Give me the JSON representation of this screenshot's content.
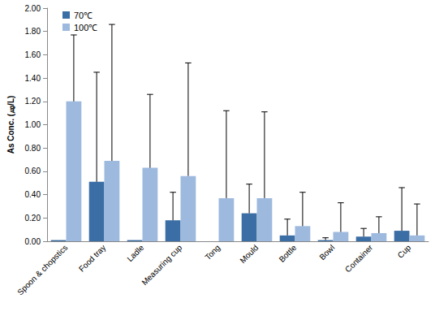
{
  "chart_data": {
    "type": "bar",
    "y_label": "As Conc. (㎍/L)",
    "categories": [
      "Spoon & chopstics",
      "Food tray",
      "Ladle",
      "Measuring cup",
      "Tong",
      "Mould",
      "Bottle",
      "Bowl",
      "Container",
      "Cup"
    ],
    "series": [
      {
        "name": "70℃",
        "color": "#3B6EA5",
        "values": [
          0.01,
          0.51,
          0.01,
          0.18,
          0.0,
          0.24,
          0.05,
          0.01,
          0.04,
          0.09
        ],
        "errors": [
          null,
          0.94,
          null,
          0.24,
          null,
          0.25,
          0.14,
          0.02,
          0.07,
          0.37
        ]
      },
      {
        "name": "100℃",
        "color": "#9DB9DE",
        "values": [
          1.2,
          0.69,
          0.63,
          0.56,
          0.37,
          0.37,
          0.13,
          0.08,
          0.07,
          0.05
        ],
        "errors": [
          0.57,
          1.17,
          0.63,
          0.97,
          0.75,
          0.74,
          0.29,
          0.25,
          0.14,
          0.27
        ]
      }
    ],
    "ylim": [
      0,
      2
    ],
    "yticks": [
      {
        "value": 0,
        "label": "0.00"
      },
      {
        "value": 0.2,
        "label": "0.20"
      },
      {
        "value": 0.4,
        "label": "0.40"
      },
      {
        "value": 0.6,
        "label": "0.60"
      },
      {
        "value": 0.8,
        "label": "0.80"
      },
      {
        "value": 1,
        "label": "1.00"
      },
      {
        "value": 1.2,
        "label": "1.20"
      },
      {
        "value": 1.4,
        "label": "1.40"
      },
      {
        "value": 1.6,
        "label": "1.60"
      },
      {
        "value": 1.8,
        "label": "1.80"
      },
      {
        "value": 2,
        "label": "2.00"
      }
    ],
    "grid": false,
    "legend": "top-left"
  }
}
